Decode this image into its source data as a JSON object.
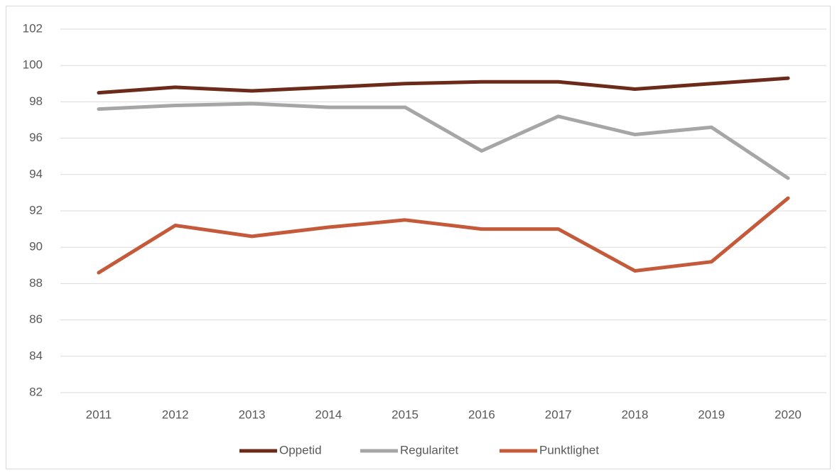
{
  "chart_data": {
    "type": "line",
    "categories": [
      "2011",
      "2012",
      "2013",
      "2014",
      "2015",
      "2016",
      "2017",
      "2018",
      "2019",
      "2020"
    ],
    "series": [
      {
        "name": "Oppetid",
        "color": "#6b2a1a",
        "values": [
          98.5,
          98.8,
          98.6,
          98.8,
          99.0,
          99.1,
          99.1,
          98.7,
          99.0,
          99.3
        ]
      },
      {
        "name": "Regularitet",
        "color": "#a6a6a6",
        "values": [
          97.6,
          97.8,
          97.9,
          97.7,
          97.7,
          95.3,
          97.2,
          96.2,
          96.6,
          93.8
        ]
      },
      {
        "name": "Punktlighet",
        "color": "#c55a3a",
        "values": [
          88.6,
          91.2,
          90.6,
          91.1,
          91.5,
          91.0,
          91.0,
          88.7,
          89.2,
          92.7
        ]
      }
    ],
    "ylim": [
      82,
      102
    ],
    "yticks": [
      82,
      84,
      86,
      88,
      90,
      92,
      94,
      96,
      98,
      100,
      102
    ],
    "grid": true,
    "legend": "bottom"
  }
}
